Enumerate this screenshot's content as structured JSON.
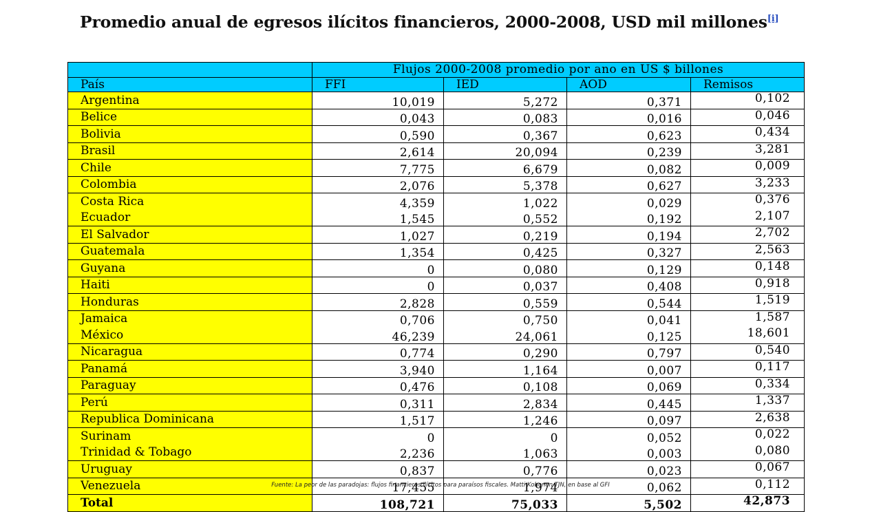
{
  "title": {
    "main": "Promedio anual de egresos ilícitos financieros, 2000-2008,",
    "tail": "USD mil millones",
    "ref": "[i]"
  },
  "table": {
    "span_header": "Flujos 2000-2008 promedio por ano en US $ billones",
    "columns": [
      "País",
      "FFI",
      "IED",
      "AOD",
      "Remisos"
    ],
    "rows": [
      {
        "country": "Argentina",
        "ffi": "10,019",
        "ied": "5,272",
        "aod": "0,371",
        "rem": "0,102"
      },
      {
        "country": "Belice",
        "ffi": "0,043",
        "ied": "0,083",
        "aod": "0,016",
        "rem": "0,046"
      },
      {
        "country": "Bolivia",
        "ffi": "0,590",
        "ied": "0,367",
        "aod": "0,623",
        "rem": "0,434"
      },
      {
        "country": "Brasil",
        "ffi": "2,614",
        "ied": "20,094",
        "aod": "0,239",
        "rem": "3,281"
      },
      {
        "country": "Chile",
        "ffi": "7,775",
        "ied": "6,679",
        "aod": "0,082",
        "rem": "0,009"
      },
      {
        "country": "Colombia",
        "ffi": "2,076",
        "ied": "5,378",
        "aod": "0,627",
        "rem": "3,233"
      },
      {
        "country": "Costa Rica",
        "ffi": "4,359",
        "ied": "1,022",
        "aod": "0,029",
        "rem": "0,376"
      },
      {
        "country": "Ecuador",
        "ffi": "1,545",
        "ied": "0,552",
        "aod": "0,192",
        "rem": "2,107"
      },
      {
        "country": "El Salvador",
        "ffi": "1,027",
        "ied": "0,219",
        "aod": "0,194",
        "rem": "2,702"
      },
      {
        "country": "Guatemala",
        "ffi": "1,354",
        "ied": "0,425",
        "aod": "0,327",
        "rem": "2,563"
      },
      {
        "country": "Guyana",
        "ffi": "0",
        "ied": "0,080",
        "aod": "0,129",
        "rem": "0,148"
      },
      {
        "country": "Haiti",
        "ffi": "0",
        "ied": "0,037",
        "aod": "0,408",
        "rem": "0,918"
      },
      {
        "country": "Honduras",
        "ffi": "2,828",
        "ied": "0,559",
        "aod": "0,544",
        "rem": "1,519"
      },
      {
        "country": "Jamaica",
        "ffi": "0,706",
        "ied": "0,750",
        "aod": "0,041",
        "rem": "1,587"
      },
      {
        "country": "México",
        "ffi": "46,239",
        "ied": "24,061",
        "aod": "0,125",
        "rem": "18,601"
      },
      {
        "country": "Nicaragua",
        "ffi": "0,774",
        "ied": "0,290",
        "aod": "0,797",
        "rem": "0,540"
      },
      {
        "country": "Panamá",
        "ffi": "3,940",
        "ied": "1,164",
        "aod": "0,007",
        "rem": "0,117"
      },
      {
        "country": "Paraguay",
        "ffi": "0,476",
        "ied": "0,108",
        "aod": "0,069",
        "rem": "0,334"
      },
      {
        "country": "Perú",
        "ffi": "0,311",
        "ied": "2,834",
        "aod": "0,445",
        "rem": "1,337"
      },
      {
        "country": "Republica Dominicana",
        "ffi": "1,517",
        "ied": "1,246",
        "aod": "0,097",
        "rem": "2,638"
      },
      {
        "country": "Surinam",
        "ffi": "0",
        "ied": "0",
        "aod": "0,052",
        "rem": "0,022"
      },
      {
        "country": "Trinidad & Tobago",
        "ffi": "2,236",
        "ied": "1,063",
        "aod": "0,003",
        "rem": "0,080"
      },
      {
        "country": "Uruguay",
        "ffi": "0,837",
        "ied": "0,776",
        "aod": "0,023",
        "rem": "0,067"
      },
      {
        "country": "Venezuela",
        "ffi": "17,455",
        "ied": "1,974",
        "aod": "0,062",
        "rem": "0,112"
      },
      {
        "country": "Total",
        "ffi": "108,721",
        "ied": "75,033",
        "aod": "5,502",
        "rem": "42,873"
      }
    ],
    "separator_rows": [
      0,
      1,
      2,
      3,
      4,
      5,
      7,
      8,
      9,
      10,
      11,
      12,
      14,
      15,
      16,
      17,
      18,
      19,
      21,
      22,
      23
    ],
    "colors": {
      "header_bg": "#00ccff",
      "country_bg": "#ffff00"
    }
  },
  "footnote": "Fuente: La peor de las paradojas: flujos financieros ilícitos para paraísos fiscales. Matti Kohonen TJN, en base al GFI"
}
